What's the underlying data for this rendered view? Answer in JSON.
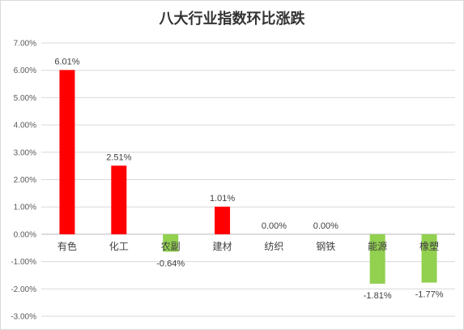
{
  "chart_data": {
    "type": "bar",
    "title": "八大行业指数环比涨跌",
    "categories": [
      "有色",
      "化工",
      "农副",
      "建材",
      "纺织",
      "钢铁",
      "能源",
      "橡塑"
    ],
    "values": [
      6.01,
      2.51,
      -0.64,
      1.01,
      0.0,
      0.0,
      -1.81,
      -1.77
    ],
    "data_labels": [
      "6.01%",
      "2.51%",
      "-0.64%",
      "1.01%",
      "0.00%",
      "0.00%",
      "-1.81%",
      "-1.77%"
    ],
    "y_ticks": [
      "-3.00%",
      "-2.00%",
      "-1.00%",
      "0.00%",
      "1.00%",
      "2.00%",
      "3.00%",
      "4.00%",
      "5.00%",
      "6.00%",
      "7.00%"
    ],
    "ylim": [
      -3,
      7
    ],
    "xlabel": "",
    "ylabel": "",
    "grid": true,
    "legend": "none",
    "colors": {
      "positive": "#ff0000",
      "negative": "#92d050",
      "grid": "#d9d9d9",
      "axis": "#bfbfbf"
    }
  }
}
